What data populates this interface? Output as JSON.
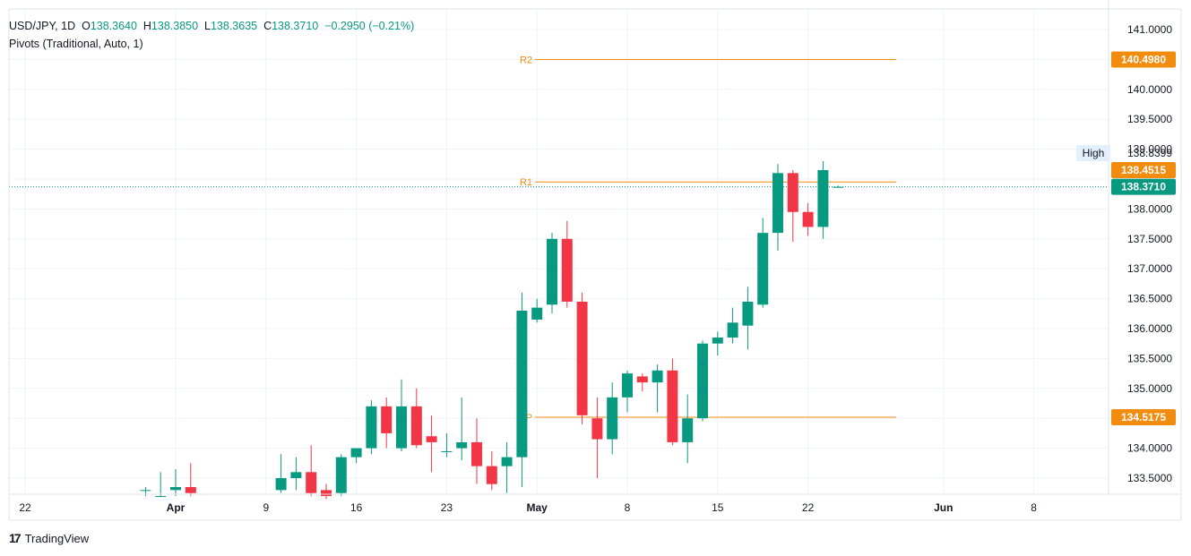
{
  "legend": {
    "symbol": "USD/JPY, 1D",
    "open_label": "O",
    "open": "138.3640",
    "high_label": "H",
    "high": "138.3850",
    "low_label": "L",
    "low": "138.3635",
    "close_label": "C",
    "close": "138.3710",
    "change": "−0.2950 (−0.21%)",
    "indicator": "Pivots (Traditional, Auto, 1)"
  },
  "branding": {
    "name": "TradingView"
  },
  "colors": {
    "up": "#089981",
    "down": "#f23645",
    "pivot": "#f28c0f",
    "grid": "#f0f3fa"
  },
  "chart_data": {
    "type": "candlestick",
    "yaxis": {
      "ticks": [
        "141.0000",
        "140.0000",
        "139.5000",
        "139.0000",
        "138.0000",
        "137.5000",
        "137.0000",
        "136.5000",
        "136.0000",
        "135.5000",
        "135.0000",
        "134.0000",
        "133.5000"
      ],
      "tick_values": [
        141.0,
        140.0,
        139.5,
        139.0,
        138.0,
        137.5,
        137.0,
        136.5,
        136.0,
        135.5,
        135.0,
        134.0,
        133.5
      ],
      "range": [
        133.25,
        141.3
      ]
    },
    "xaxis": {
      "labels": [
        "22",
        "Apr",
        "9",
        "16",
        "23",
        "May",
        "8",
        "15",
        "22",
        "Jun",
        "8"
      ],
      "label_index": [
        0,
        10,
        16,
        22,
        28,
        34,
        40,
        46,
        52,
        61,
        67
      ],
      "bold_labels": [
        "Apr",
        "May",
        "Jun"
      ]
    },
    "candles": [
      {
        "i": 8,
        "o": 133.3,
        "h": 133.35,
        "l": 133.2,
        "c": 133.3
      },
      {
        "i": 9,
        "o": 133.2,
        "h": 133.6,
        "l": 133.2,
        "c": 133.2
      },
      {
        "i": 10,
        "o": 133.3,
        "h": 133.65,
        "l": 133.2,
        "c": 133.35
      },
      {
        "i": 11,
        "o": 133.35,
        "h": 133.75,
        "l": 133.2,
        "c": 133.25
      },
      {
        "i": 17,
        "o": 133.3,
        "h": 133.9,
        "l": 133.25,
        "c": 133.5
      },
      {
        "i": 18,
        "o": 133.5,
        "h": 133.85,
        "l": 133.3,
        "c": 133.6
      },
      {
        "i": 19,
        "o": 133.6,
        "h": 134.05,
        "l": 133.2,
        "c": 133.25
      },
      {
        "i": 20,
        "o": 133.3,
        "h": 133.4,
        "l": 133.15,
        "c": 133.2
      },
      {
        "i": 21,
        "o": 133.25,
        "h": 133.9,
        "l": 133.2,
        "c": 133.85
      },
      {
        "i": 22,
        "o": 133.85,
        "h": 134.0,
        "l": 133.75,
        "c": 134.0
      },
      {
        "i": 23,
        "o": 134.0,
        "h": 134.8,
        "l": 133.9,
        "c": 134.7
      },
      {
        "i": 24,
        "o": 134.7,
        "h": 134.85,
        "l": 134.0,
        "c": 134.25
      },
      {
        "i": 25,
        "o": 134.0,
        "h": 135.15,
        "l": 133.95,
        "c": 134.7
      },
      {
        "i": 26,
        "o": 134.7,
        "h": 135.0,
        "l": 134.0,
        "c": 134.05
      },
      {
        "i": 27,
        "o": 134.2,
        "h": 134.55,
        "l": 133.6,
        "c": 134.1
      },
      {
        "i": 28,
        "o": 133.95,
        "h": 134.25,
        "l": 133.85,
        "c": 133.95
      },
      {
        "i": 29,
        "o": 134.0,
        "h": 134.85,
        "l": 133.8,
        "c": 134.1
      },
      {
        "i": 30,
        "o": 134.1,
        "h": 134.5,
        "l": 133.4,
        "c": 133.7
      },
      {
        "i": 31,
        "o": 133.7,
        "h": 133.95,
        "l": 133.3,
        "c": 133.4
      },
      {
        "i": 32,
        "o": 133.7,
        "h": 134.1,
        "l": 133.25,
        "c": 133.85
      },
      {
        "i": 33,
        "o": 133.85,
        "h": 136.6,
        "l": 133.35,
        "c": 136.3
      },
      {
        "i": 34,
        "o": 136.15,
        "h": 136.5,
        "l": 136.1,
        "c": 136.35
      },
      {
        "i": 35,
        "o": 136.4,
        "h": 137.6,
        "l": 136.25,
        "c": 137.5
      },
      {
        "i": 36,
        "o": 137.5,
        "h": 137.8,
        "l": 136.35,
        "c": 136.45
      },
      {
        "i": 37,
        "o": 136.45,
        "h": 136.6,
        "l": 134.4,
        "c": 134.55
      },
      {
        "i": 38,
        "o": 134.5,
        "h": 134.85,
        "l": 133.5,
        "c": 134.15
      },
      {
        "i": 39,
        "o": 134.15,
        "h": 135.1,
        "l": 133.9,
        "c": 134.85
      },
      {
        "i": 40,
        "o": 134.85,
        "h": 135.3,
        "l": 134.6,
        "c": 135.25
      },
      {
        "i": 41,
        "o": 135.2,
        "h": 135.25,
        "l": 134.95,
        "c": 135.1
      },
      {
        "i": 42,
        "o": 135.1,
        "h": 135.4,
        "l": 134.6,
        "c": 135.3
      },
      {
        "i": 43,
        "o": 135.3,
        "h": 135.5,
        "l": 134.05,
        "c": 134.1
      },
      {
        "i": 44,
        "o": 134.1,
        "h": 134.9,
        "l": 133.75,
        "c": 134.5
      },
      {
        "i": 45,
        "o": 134.5,
        "h": 135.8,
        "l": 134.45,
        "c": 135.75
      },
      {
        "i": 46,
        "o": 135.75,
        "h": 135.95,
        "l": 135.55,
        "c": 135.85
      },
      {
        "i": 47,
        "o": 135.85,
        "h": 136.35,
        "l": 135.75,
        "c": 136.1
      },
      {
        "i": 48,
        "o": 136.05,
        "h": 136.7,
        "l": 135.65,
        "c": 136.45
      },
      {
        "i": 49,
        "o": 136.4,
        "h": 137.85,
        "l": 136.35,
        "c": 137.6
      },
      {
        "i": 50,
        "o": 137.6,
        "h": 138.75,
        "l": 137.3,
        "c": 138.6
      },
      {
        "i": 51,
        "o": 138.6,
        "h": 138.65,
        "l": 137.45,
        "c": 137.95
      },
      {
        "i": 52,
        "o": 137.95,
        "h": 138.1,
        "l": 137.55,
        "c": 137.7
      },
      {
        "i": 53,
        "o": 137.7,
        "h": 138.8,
        "l": 137.5,
        "c": 138.65
      },
      {
        "i": 54,
        "o": 138.36,
        "h": 138.39,
        "l": 138.36,
        "c": 138.37
      }
    ],
    "pivots": [
      {
        "name": "R2",
        "value": 140.498,
        "label": "140.4980"
      },
      {
        "name": "R1",
        "value": 138.4515,
        "label": "138.4515"
      },
      {
        "name": "P",
        "value": 134.5175,
        "label": "134.5175"
      }
    ],
    "high_line": {
      "label": "High",
      "value": 138.8399,
      "value_label": "138.8399"
    },
    "last_price": {
      "value": 138.371,
      "label": "138.3710"
    }
  }
}
